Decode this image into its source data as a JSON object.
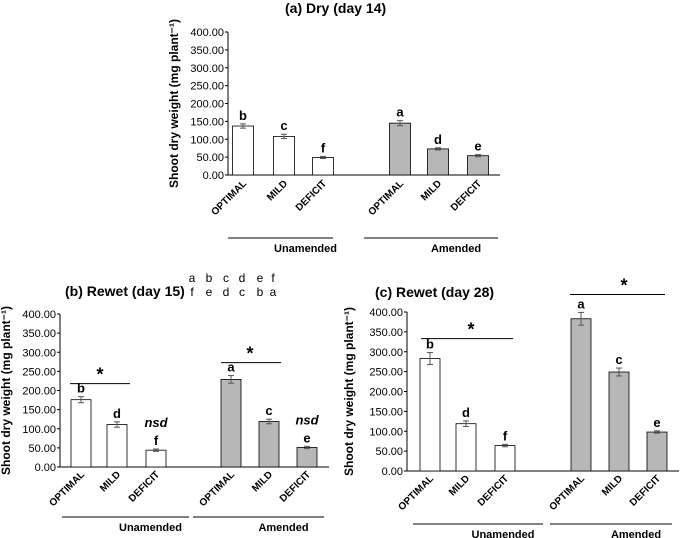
{
  "colors": {
    "unamended": "#ffffff",
    "amended": "#b7b7b7",
    "stroke": "#000000",
    "error": "#555555"
  },
  "chart_data": [
    {
      "type": "bar",
      "title": "(a) Dry (day 14)",
      "ylabel": "Shoot dry weight (mg plant⁻¹)",
      "ylim": [
        0,
        400
      ],
      "yticks": [
        "0.00",
        "50.00",
        "100.00",
        "150.00",
        "200.00",
        "250.00",
        "300.00",
        "350.00",
        "400.00"
      ],
      "categories": [
        "OPTIMAL",
        "MILD",
        "DEFICIT",
        "OPTIMAL",
        "MILD",
        "DEFICIT"
      ],
      "groups": [
        "Unamended",
        "Amended"
      ],
      "values": [
        137,
        108,
        49,
        145,
        73,
        54
      ],
      "errors": [
        6,
        6,
        3,
        7,
        3,
        3
      ],
      "letters": [
        "b",
        "c",
        "f",
        "a",
        "d",
        "e"
      ],
      "extra_letters": [],
      "star_lines": []
    },
    {
      "type": "bar",
      "title": "(b) Rewet (day 15)",
      "ylabel": "Shoot dry weight (mg plant⁻¹)",
      "ylim": [
        0,
        400
      ],
      "yticks": [
        "0.00",
        "50.00",
        "100.00",
        "150.00",
        "200.00",
        "250.00",
        "300.00",
        "350.00",
        "400.00"
      ],
      "categories": [
        "OPTIMAL",
        "MILD",
        "DEFICIT",
        "OPTIMAL",
        "MILD",
        "DEFICIT"
      ],
      "groups": [
        "Unamended",
        "Amended"
      ],
      "values": [
        176,
        111,
        44,
        229,
        119,
        51
      ],
      "errors": [
        8,
        7,
        3,
        10,
        6,
        3
      ],
      "letters": [
        "b",
        "d",
        "f",
        "a",
        "c",
        "e"
      ],
      "extra_letters": [
        "nsd",
        "nsd"
      ],
      "letter_key": [
        [
          "a",
          "b",
          "c",
          "d",
          "e",
          "f"
        ],
        [
          "f",
          "e",
          "d",
          "c",
          "b",
          "a"
        ]
      ],
      "star_lines": [
        {
          "label": "*",
          "value": 218
        },
        {
          "label": "*",
          "value": 273
        }
      ]
    },
    {
      "type": "bar",
      "title": "(c) Rewet (day 28)",
      "ylabel": "Shoot dry weight (mg plant⁻¹)",
      "ylim": [
        0,
        400
      ],
      "yticks": [
        "0.00",
        "50.00",
        "100.00",
        "150.00",
        "200.00",
        "250.00",
        "300.00",
        "350.00",
        "400.00"
      ],
      "categories": [
        "OPTIMAL",
        "MILD",
        "DEFICIT",
        "OPTIMAL",
        "MILD",
        "DEFICIT"
      ],
      "groups": [
        "Unamended",
        "Amended"
      ],
      "values": [
        283,
        119,
        64,
        383,
        249,
        98
      ],
      "errors": [
        15,
        7,
        3,
        16,
        10,
        3
      ],
      "letters": [
        "b",
        "d",
        "f",
        "a",
        "c",
        "e"
      ],
      "extra_letters": [],
      "star_lines": [
        {
          "label": "*",
          "value": 333
        },
        {
          "label": "*",
          "value": 444
        }
      ]
    }
  ]
}
